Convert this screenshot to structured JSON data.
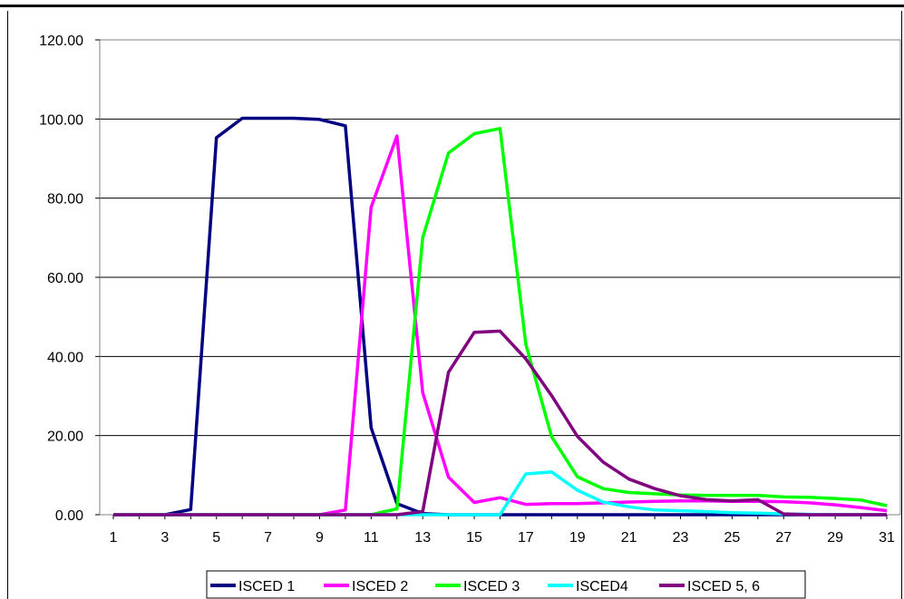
{
  "chart_data": {
    "type": "line",
    "x": [
      1,
      2,
      3,
      4,
      5,
      6,
      7,
      8,
      9,
      10,
      11,
      12,
      13,
      14,
      15,
      16,
      17,
      18,
      19,
      20,
      21,
      22,
      23,
      24,
      25,
      26,
      27,
      28,
      29,
      30,
      31
    ],
    "x_ticks": [
      "1",
      "3",
      "5",
      "7",
      "9",
      "11",
      "13",
      "15",
      "17",
      "19",
      "21",
      "23",
      "25",
      "27",
      "29",
      "31"
    ],
    "ylim": [
      0,
      120
    ],
    "y_ticks": [
      "0.00",
      "20.00",
      "40.00",
      "60.00",
      "80.00",
      "100.00",
      "120.00"
    ],
    "grid": "horizontal",
    "legend_position": "bottom",
    "series": [
      {
        "name": "ISCED 1",
        "color": "#000080",
        "values": [
          0,
          0,
          0,
          1.3,
          95.3,
          100.2,
          100.2,
          100.2,
          99.9,
          98.3,
          22,
          2.8,
          0.3,
          0,
          0,
          0,
          0,
          0,
          0,
          0,
          0,
          0,
          0,
          0,
          0,
          0,
          0,
          0,
          0,
          0,
          0
        ]
      },
      {
        "name": "ISCED 2",
        "color": "#FF00FF",
        "values": [
          0,
          0,
          0,
          0,
          0,
          0,
          0,
          0,
          0,
          1.2,
          77.7,
          95.7,
          30.9,
          9.5,
          3.1,
          4.3,
          2.6,
          2.8,
          2.8,
          3,
          3.2,
          3.4,
          3.5,
          3.5,
          3.4,
          3.4,
          3.3,
          3,
          2.5,
          1.8,
          1
        ]
      },
      {
        "name": "ISCED 3",
        "color": "#00FF00",
        "values": [
          0,
          0,
          0,
          0,
          0,
          0,
          0,
          0,
          0,
          0,
          0,
          1.5,
          70,
          91.4,
          96.3,
          97.6,
          43.1,
          19.7,
          9.6,
          6.6,
          5.6,
          5.3,
          5,
          4.9,
          4.9,
          4.9,
          4.5,
          4.4,
          4.1,
          3.7,
          2.3
        ]
      },
      {
        "name": "ISCED4",
        "color": "#00FFFF",
        "values": [
          0,
          0,
          0,
          0,
          0,
          0,
          0,
          0,
          0,
          0,
          0,
          0,
          0,
          0,
          0,
          0,
          10.3,
          10.8,
          6.2,
          3.2,
          2,
          1.2,
          1,
          0.8,
          0.5,
          0.4,
          0.2,
          0.1,
          0,
          0,
          0
        ]
      },
      {
        "name": "ISCED 5, 6",
        "color": "#800080",
        "values": [
          0,
          0,
          0,
          0,
          0,
          0,
          0,
          0,
          0,
          0,
          0,
          0,
          0.8,
          36,
          46.1,
          46.4,
          39.4,
          30.1,
          19.8,
          13.3,
          9,
          6.6,
          4.8,
          3.8,
          3.5,
          3.8,
          0.2,
          0,
          0,
          0,
          0
        ]
      }
    ]
  }
}
